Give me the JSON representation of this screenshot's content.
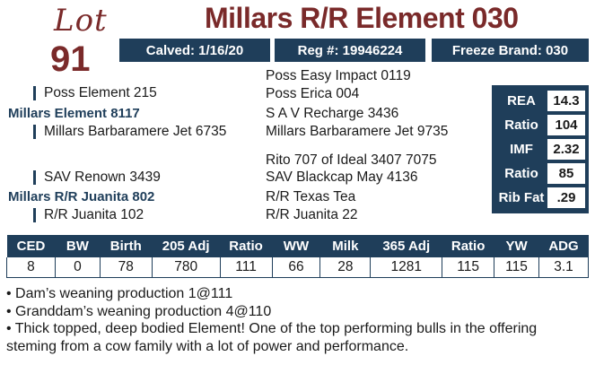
{
  "lot": {
    "word": "Lot",
    "number": "91"
  },
  "title": "Millars R/R Element 030",
  "info": {
    "calved": "Calved: 1/16/20",
    "reg": "Reg #: 19946224",
    "freeze": "Freeze Brand: 030"
  },
  "pedigree": {
    "sire": "Millars Element 8117",
    "sire_sire": "Poss Element 215",
    "sire_dam": "Millars Barbaramere Jet 6735",
    "sire_sire_sire": "Poss Easy Impact 0119",
    "sire_sire_dam": "Poss Erica 004",
    "sire_dam_sire": "S A V Recharge 3436",
    "sire_dam_dam": "Millars Barbaramere Jet 9735",
    "dam": "Millars R/R Juanita 802",
    "dam_sire": "SAV Renown 3439",
    "dam_dam": "R/R Juanita 102",
    "dam_sire_sire": "Rito 707 of Ideal 3407 7075",
    "dam_sire_dam": "SAV Blackcap May 4136",
    "dam_dam_sire": "R/R Texas Tea",
    "dam_dam_dam": "R/R Juanita 22"
  },
  "carcass": [
    {
      "label": "REA",
      "value": "14.3"
    },
    {
      "label": "Ratio",
      "value": "104"
    },
    {
      "label": "IMF",
      "value": "2.32"
    },
    {
      "label": "Ratio",
      "value": "85"
    },
    {
      "label": "Rib Fat",
      "value": ".29"
    }
  ],
  "performance": {
    "headers": [
      "CED",
      "BW",
      "Birth",
      "205 Adj",
      "Ratio",
      "WW",
      "Milk",
      "365 Adj",
      "Ratio",
      "YW",
      "ADG"
    ],
    "values": [
      "8",
      "0",
      "78",
      "780",
      "111",
      "66",
      "28",
      "1281",
      "115",
      "115",
      "3.1"
    ]
  },
  "notes": [
    "• Dam’s weaning production 1@111",
    "• Granddam’s weaning production 4@110",
    "• Thick topped, deep bodied Element! One of the top performing bulls in the offering steming from a cow family with a lot of power and performance."
  ]
}
